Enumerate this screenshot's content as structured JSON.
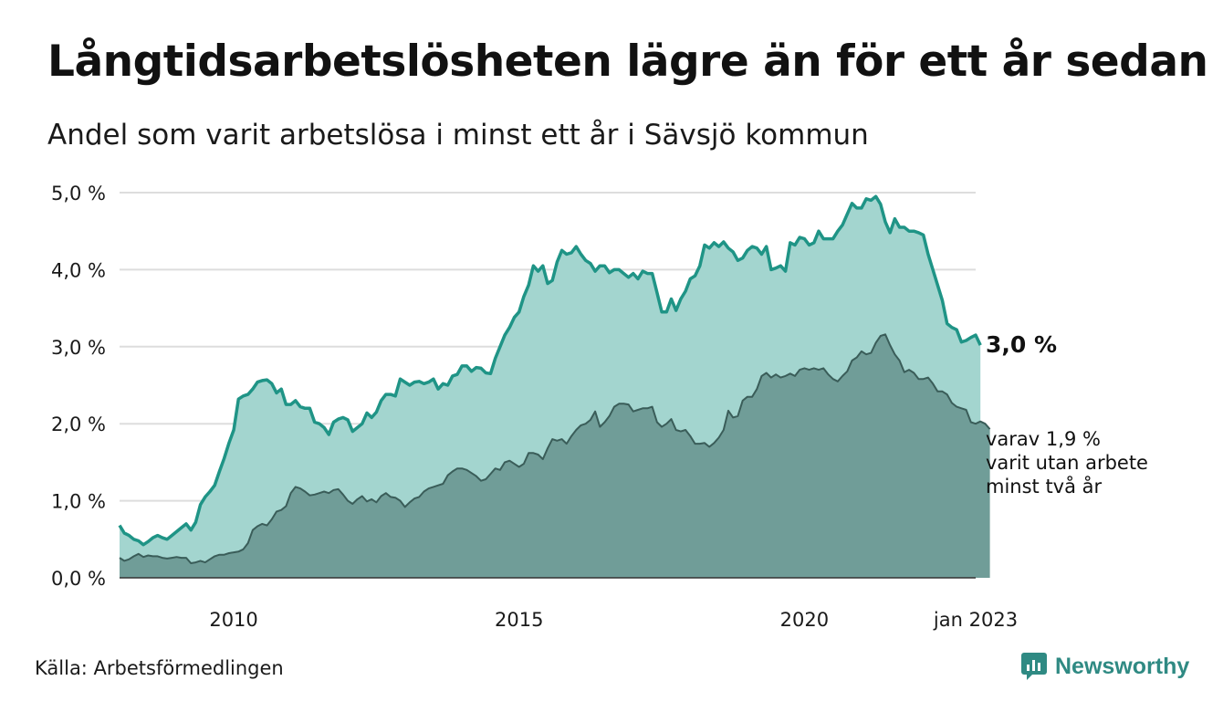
{
  "title": "Långtidsarbetslösheten lägre än för ett år sedan",
  "subtitle": "Andel som varit arbetslösa i minst ett år i Sävsjö kommun",
  "source": "Källa: Arbetsförmedlingen",
  "brand": {
    "name": "Newsworthy",
    "icon": "newsworthy-logo-icon"
  },
  "colors": {
    "outer_area": "#a3d5cf",
    "outer_line": "#1f9486",
    "inner_area": "#709d98",
    "inner_line": "#3a5d59",
    "grid": "#dddddd",
    "baseline": "#333333"
  },
  "labels": {
    "end_main": "3,0 %",
    "end_sub_lines": [
      "varav 1,9 %",
      "varit utan arbete",
      "minst två år"
    ]
  },
  "chart_data": {
    "type": "area",
    "x_start": "2008-01",
    "x_end": "2023-01",
    "step": "month",
    "ylim": [
      0,
      5
    ],
    "y_ticks": [
      0,
      1,
      2,
      3,
      4,
      5
    ],
    "y_tick_labels": [
      "0,0 %",
      "1,0 %",
      "2,0 %",
      "3,0 %",
      "4,0 %",
      "5,0 %"
    ],
    "x_ticks": [
      "2010-01",
      "2015-01",
      "2020-01",
      "2023-01"
    ],
    "x_tick_labels": [
      "2010",
      "2015",
      "2020",
      "jan 2023"
    ],
    "grid": true,
    "legend": "none",
    "series": [
      {
        "values": [
          0.68,
          0.58,
          0.55,
          0.5,
          0.48,
          0.43,
          0.47,
          0.52,
          0.55,
          0.52,
          0.5,
          0.55,
          0.6,
          0.65,
          0.7,
          0.62,
          0.72,
          0.95,
          1.05,
          1.12,
          1.2,
          1.38,
          1.55,
          1.75,
          1.92,
          2.32,
          2.36,
          2.38,
          2.45,
          2.54,
          2.56,
          2.57,
          2.52,
          2.4,
          2.45,
          2.25,
          2.25,
          2.3,
          2.22,
          2.2,
          2.2,
          2.02,
          2.0,
          1.95,
          1.86,
          2.02,
          2.06,
          2.08,
          2.05,
          1.9,
          1.95,
          2.0,
          2.14,
          2.08,
          2.15,
          2.3,
          2.38,
          2.38,
          2.36,
          2.58,
          2.54,
          2.5,
          2.54,
          2.55,
          2.52,
          2.54,
          2.58,
          2.45,
          2.52,
          2.5,
          2.62,
          2.64,
          2.75,
          2.75,
          2.68,
          2.73,
          2.72,
          2.66,
          2.65,
          2.85,
          3.0,
          3.15,
          3.25,
          3.38,
          3.45,
          3.65,
          3.8,
          4.05,
          3.98,
          4.05,
          3.82,
          3.86,
          4.1,
          4.25,
          4.2,
          4.22,
          4.3,
          4.2,
          4.12,
          4.08,
          3.98,
          4.05,
          4.05,
          3.96,
          4.0,
          4.0,
          3.95,
          3.9,
          3.95,
          3.88,
          3.98,
          3.95,
          3.95,
          3.7,
          3.45,
          3.45,
          3.62,
          3.47,
          3.62,
          3.72,
          3.88,
          3.92,
          4.05,
          4.32,
          4.28,
          4.35,
          4.3,
          4.36,
          4.28,
          4.23,
          4.12,
          4.15,
          4.25,
          4.3,
          4.28,
          4.2,
          4.3,
          4.0,
          4.02,
          4.05,
          3.98,
          4.35,
          4.32,
          4.42,
          4.4,
          4.32,
          4.35,
          4.5,
          4.4,
          4.4,
          4.4,
          4.5,
          4.58,
          4.72,
          4.86,
          4.8,
          4.8,
          4.92,
          4.9,
          4.95,
          4.85,
          4.62,
          4.48,
          4.66,
          4.55,
          4.55,
          4.5,
          4.5,
          4.48,
          4.45,
          4.2,
          4.0,
          3.8,
          3.6,
          3.3,
          3.25,
          3.22,
          3.06,
          3.08,
          3.12,
          3.15,
          3.02
        ]
      },
      {
        "values": [
          0.26,
          0.22,
          0.24,
          0.28,
          0.31,
          0.27,
          0.29,
          0.28,
          0.28,
          0.26,
          0.25,
          0.26,
          0.27,
          0.26,
          0.26,
          0.19,
          0.2,
          0.22,
          0.2,
          0.24,
          0.28,
          0.3,
          0.3,
          0.32,
          0.33,
          0.34,
          0.37,
          0.45,
          0.62,
          0.67,
          0.7,
          0.68,
          0.76,
          0.86,
          0.88,
          0.93,
          1.1,
          1.18,
          1.16,
          1.12,
          1.07,
          1.08,
          1.1,
          1.12,
          1.1,
          1.14,
          1.15,
          1.08,
          1.0,
          0.96,
          1.02,
          1.06,
          0.99,
          1.02,
          0.98,
          1.06,
          1.1,
          1.05,
          1.04,
          1.0,
          0.92,
          0.98,
          1.03,
          1.05,
          1.12,
          1.16,
          1.18,
          1.2,
          1.22,
          1.33,
          1.38,
          1.42,
          1.42,
          1.4,
          1.36,
          1.32,
          1.26,
          1.28,
          1.35,
          1.42,
          1.4,
          1.5,
          1.52,
          1.48,
          1.44,
          1.48,
          1.62,
          1.62,
          1.6,
          1.54,
          1.68,
          1.8,
          1.78,
          1.8,
          1.74,
          1.84,
          1.92,
          1.98,
          2.0,
          2.05,
          2.16,
          1.96,
          2.02,
          2.1,
          2.22,
          2.26,
          2.26,
          2.25,
          2.16,
          2.18,
          2.2,
          2.2,
          2.22,
          2.02,
          1.96,
          2.0,
          2.06,
          1.92,
          1.9,
          1.92,
          1.84,
          1.74,
          1.74,
          1.75,
          1.7,
          1.75,
          1.82,
          1.92,
          2.17,
          2.08,
          2.1,
          2.3,
          2.35,
          2.35,
          2.45,
          2.62,
          2.66,
          2.6,
          2.64,
          2.6,
          2.62,
          2.65,
          2.62,
          2.7,
          2.72,
          2.7,
          2.72,
          2.7,
          2.72,
          2.64,
          2.58,
          2.55,
          2.62,
          2.68,
          2.82,
          2.86,
          2.94,
          2.9,
          2.92,
          3.05,
          3.14,
          3.16,
          3.02,
          2.9,
          2.82,
          2.67,
          2.7,
          2.66,
          2.58,
          2.58,
          2.6,
          2.52,
          2.42,
          2.42,
          2.38,
          2.27,
          2.22,
          2.2,
          2.18,
          2.02,
          2.0,
          2.03,
          2.0,
          1.93
        ]
      }
    ]
  }
}
